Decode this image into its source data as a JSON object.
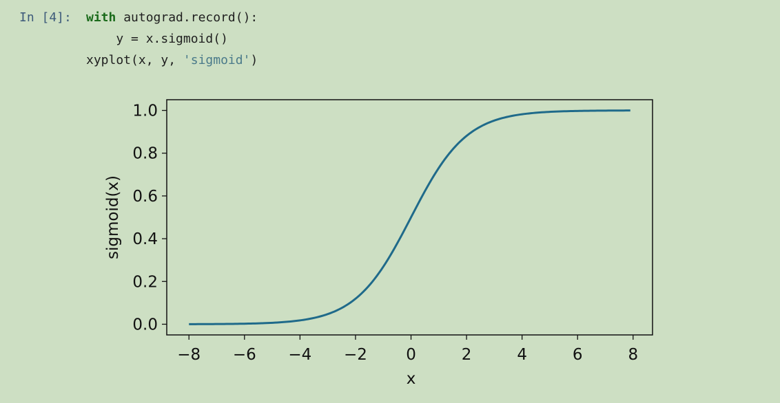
{
  "cell": {
    "prompt": "In [4]:",
    "code": [
      [
        {
          "t": "with",
          "c": "kw"
        },
        {
          "t": " autograd.record():",
          "c": ""
        }
      ],
      [
        {
          "t": "    y = x.sigmoid()",
          "c": ""
        }
      ],
      [
        {
          "t": "xyplot(x, y, ",
          "c": ""
        },
        {
          "t": "'sigmoid'",
          "c": "str"
        },
        {
          "t": ")",
          "c": ""
        }
      ]
    ]
  },
  "chart_data": {
    "type": "line",
    "xlabel": "x",
    "ylabel": "sigmoid(x)",
    "xlim": [
      -8.8,
      8.7
    ],
    "ylim": [
      -0.05,
      1.05
    ],
    "xticks": [
      -8,
      -6,
      -4,
      -2,
      0,
      2,
      4,
      6,
      8
    ],
    "xtick_labels": [
      "−8",
      "−6",
      "−4",
      "−2",
      "0",
      "2",
      "4",
      "6",
      "8"
    ],
    "yticks": [
      0.0,
      0.2,
      0.4,
      0.6,
      0.8,
      1.0
    ],
    "ytick_labels": [
      "0.0",
      "0.2",
      "0.4",
      "0.6",
      "0.8",
      "1.0"
    ],
    "grid": false,
    "series": [
      {
        "color": "#1f6a8a",
        "function": "sigmoid",
        "x_range": [
          -8.0,
          7.9
        ]
      }
    ]
  }
}
